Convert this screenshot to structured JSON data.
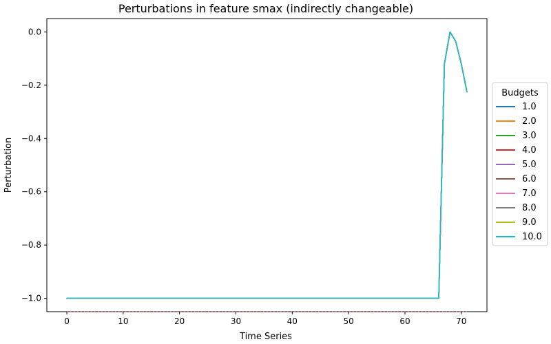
{
  "chart_data": {
    "type": "line",
    "title": "Perturbations in feature smax (indirectly changeable)",
    "xlabel": "Time Series",
    "ylabel": "Perturbation",
    "xlim": [
      -3.55,
      74.55
    ],
    "ylim": [
      -1.05,
      0.05
    ],
    "xticks": [
      0,
      10,
      20,
      30,
      40,
      50,
      60,
      70
    ],
    "yticks": [
      0.0,
      -0.2,
      -0.4,
      -0.6,
      -0.8,
      -1.0
    ],
    "xtick_labels": [
      "0",
      "10",
      "20",
      "30",
      "40",
      "50",
      "60",
      "70"
    ],
    "ytick_labels": [
      "0.0",
      "−0.2",
      "−0.4",
      "−0.6",
      "−0.8",
      "−1.0"
    ],
    "grid": false,
    "legend": {
      "title": "Budgets",
      "placement": "center-right-outside"
    },
    "series": [
      {
        "name": "1.0",
        "color": "#1f77b4"
      },
      {
        "name": "2.0",
        "color": "#ff7f0e"
      },
      {
        "name": "3.0",
        "color": "#2ca02c"
      },
      {
        "name": "4.0",
        "color": "#d62728"
      },
      {
        "name": "5.0",
        "color": "#9467bd"
      },
      {
        "name": "6.0",
        "color": "#8c564b"
      },
      {
        "name": "7.0",
        "color": "#e377c2"
      },
      {
        "name": "8.0",
        "color": "#7f7f7f"
      },
      {
        "name": "9.0",
        "color": "#bcbd22"
      },
      {
        "name": "10.0",
        "color": "#17becf"
      }
    ],
    "shared_curve": {
      "x": [
        0,
        10,
        20,
        30,
        40,
        50,
        60,
        66,
        67,
        68,
        69,
        70,
        71
      ],
      "y": [
        -1.0,
        -1.0,
        -1.0,
        -1.0,
        -1.0,
        -1.0,
        -1.0,
        -1.0,
        -0.12,
        0.0,
        -0.035,
        -0.12,
        -0.225
      ]
    },
    "baseline_dashes": {
      "x": [
        0,
        71
      ],
      "y": -1.05,
      "color": "#d62728"
    }
  }
}
